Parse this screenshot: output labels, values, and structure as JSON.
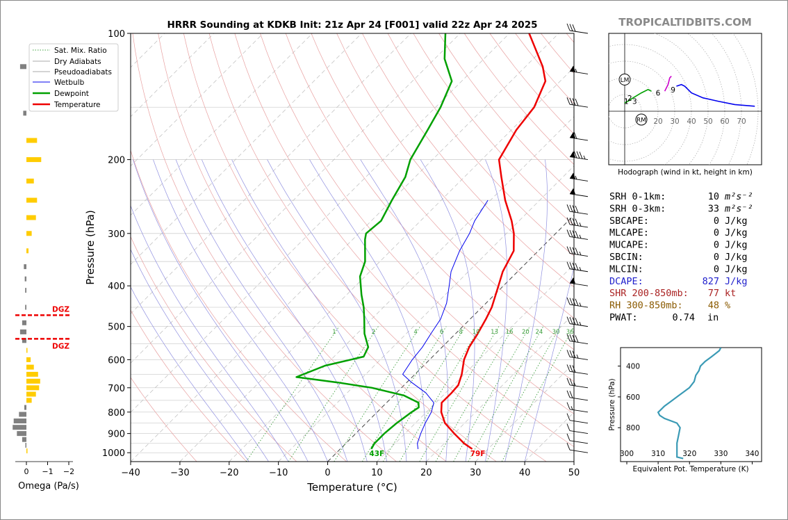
{
  "site": "TROPICALTIDBITS.COM",
  "colors": {
    "temperature": "#ee0000",
    "dewpoint": "#00a000",
    "wetbulb": "#0000ee",
    "dry_adiabat": "#e8a0a0",
    "pseudo_adiabat": "#9090e0",
    "mixing_ratio": "#40a040",
    "dgz": "#ee0000",
    "omega_up": "#ffcc00",
    "omega_down": "#808080",
    "hodo_low": "#00a000",
    "hodo_mid": "#cc00cc",
    "hodo_high": "#0000ee",
    "theta_e": "#3a9ab5",
    "dcape": "#2020cc",
    "shr": "#aa2222",
    "rh": "#8a5a00"
  },
  "chart_data": [
    {
      "type": "skew-t",
      "title": "HRRR Sounding at KDKB Init: 21z Apr 24 [F001] valid 22z Apr 24 2025",
      "xlabel": "Temperature (°C)",
      "ylabel": "Pressure (hPa)",
      "xlim": [
        -40,
        50
      ],
      "x_ticks": [
        "−40",
        "−30",
        "−20",
        "−10",
        "0",
        "10",
        "20",
        "30",
        "40",
        "50"
      ],
      "ylim": [
        1050,
        100
      ],
      "y_ticks": [
        "100",
        "200",
        "300",
        "400",
        "500",
        "600",
        "700",
        "800",
        "900",
        "1000"
      ],
      "legend": [
        "Sat. Mix. Ratio",
        "Dry Adiabats",
        "Pseudoadiabats",
        "Wetbulb",
        "Dewpoint",
        "Temperature"
      ],
      "legend_placement": "top-left",
      "mixing_ratio_labels": [
        "1",
        "2",
        "4",
        "6",
        "8",
        "10",
        "13",
        "16",
        "20",
        "24",
        "30",
        "36"
      ],
      "surface_temperature_label": "79F",
      "surface_dewpoint_label": "43F",
      "series": [
        {
          "name": "Temperature",
          "points": [
            [
              980,
              26.8
            ],
            [
              950,
              24.0
            ],
            [
              900,
              20.0
            ],
            [
              850,
              16.0
            ],
            [
              800,
              13.0
            ],
            [
              760,
              11.2
            ],
            [
              720,
              11.2
            ],
            [
              690,
              11.0
            ],
            [
              650,
              9.5
            ],
            [
              600,
              7.0
            ],
            [
              560,
              5.5
            ],
            [
              520,
              4.5
            ],
            [
              480,
              3.2
            ],
            [
              450,
              2.0
            ],
            [
              400,
              -1.0
            ],
            [
              370,
              -3.0
            ],
            [
              330,
              -5.0
            ],
            [
              300,
              -8.5
            ],
            [
              280,
              -11.5
            ],
            [
              250,
              -17.0
            ],
            [
              220,
              -22.5
            ],
            [
              200,
              -26.5
            ],
            [
              170,
              -29.0
            ],
            [
              150,
              -30.0
            ],
            [
              130,
              -33.0
            ],
            [
              120,
              -36.5
            ],
            [
              100,
              -46.0
            ]
          ]
        },
        {
          "name": "Dewpoint",
          "points": [
            [
              980,
              6.3
            ],
            [
              950,
              5.8
            ],
            [
              900,
              5.8
            ],
            [
              850,
              6.2
            ],
            [
              800,
              7.0
            ],
            [
              780,
              7.5
            ],
            [
              760,
              6.5
            ],
            [
              730,
              2.0
            ],
            [
              700,
              -6.0
            ],
            [
              680,
              -14.0
            ],
            [
              660,
              -23.5
            ],
            [
              620,
              -20.0
            ],
            [
              590,
              -14.0
            ],
            [
              560,
              -15.0
            ],
            [
              520,
              -18.5
            ],
            [
              480,
              -21.5
            ],
            [
              450,
              -24.0
            ],
            [
              420,
              -27.0
            ],
            [
              380,
              -31.0
            ],
            [
              350,
              -33.0
            ],
            [
              310,
              -37.5
            ],
            [
              300,
              -38.5
            ],
            [
              280,
              -38.0
            ],
            [
              250,
              -40.0
            ],
            [
              220,
              -42.0
            ],
            [
              200,
              -44.5
            ],
            [
              170,
              -47.0
            ],
            [
              150,
              -49.0
            ],
            [
              130,
              -52.0
            ],
            [
              115,
              -58.0
            ],
            [
              100,
              -63.0
            ]
          ]
        },
        {
          "name": "Wetbulb",
          "points": [
            [
              980,
              15.8
            ],
            [
              950,
              14.5
            ],
            [
              900,
              13.2
            ],
            [
              850,
              12.0
            ],
            [
              800,
              11.0
            ],
            [
              760,
              9.6
            ],
            [
              720,
              6.0
            ],
            [
              680,
              1.0
            ],
            [
              650,
              -2.5
            ],
            [
              600,
              -3.5
            ],
            [
              560,
              -4.0
            ],
            [
              520,
              -5.0
            ],
            [
              480,
              -6.0
            ],
            [
              440,
              -8.0
            ],
            [
              400,
              -11.0
            ],
            [
              370,
              -13.5
            ],
            [
              330,
              -16.0
            ],
            [
              300,
              -17.5
            ],
            [
              280,
              -19.0
            ],
            [
              250,
              -20.5
            ]
          ]
        }
      ],
      "wind_barbs_kt": [
        {
          "p": 1000,
          "speed": 10
        },
        {
          "p": 950,
          "speed": 10
        },
        {
          "p": 900,
          "speed": 10
        },
        {
          "p": 850,
          "speed": 10
        },
        {
          "p": 800,
          "speed": 15
        },
        {
          "p": 750,
          "speed": 20
        },
        {
          "p": 700,
          "speed": 25
        },
        {
          "p": 650,
          "speed": 30
        },
        {
          "p": 600,
          "speed": 35
        },
        {
          "p": 550,
          "speed": 40
        },
        {
          "p": 500,
          "speed": 45
        },
        {
          "p": 450,
          "speed": 45
        },
        {
          "p": 400,
          "speed": 50
        },
        {
          "p": 370,
          "speed": 45
        },
        {
          "p": 340,
          "speed": 45
        },
        {
          "p": 310,
          "speed": 45
        },
        {
          "p": 290,
          "speed": 45
        },
        {
          "p": 270,
          "speed": 40
        },
        {
          "p": 245,
          "speed": 50
        },
        {
          "p": 225,
          "speed": 55
        },
        {
          "p": 200,
          "speed": 85
        },
        {
          "p": 180,
          "speed": 60
        },
        {
          "p": 150,
          "speed": 40
        },
        {
          "p": 125,
          "speed": 55
        },
        {
          "p": 100,
          "speed": 30
        }
      ]
    },
    {
      "type": "bar",
      "title": "",
      "xlabel": "Omega (Pa/s)",
      "x_ticks": [
        "0",
        "−1",
        "−2"
      ],
      "xlim": [
        0.5,
        -2.0
      ],
      "dgz_label": "DGZ",
      "dgz_levels": [
        470,
        535
      ],
      "values": [
        {
          "p": 120,
          "w": 0.3
        },
        {
          "p": 155,
          "w": 0.15
        },
        {
          "p": 180,
          "w": -0.5
        },
        {
          "p": 200,
          "w": -0.7
        },
        {
          "p": 225,
          "w": -0.35
        },
        {
          "p": 250,
          "w": -0.5
        },
        {
          "p": 275,
          "w": -0.45
        },
        {
          "p": 300,
          "w": -0.25
        },
        {
          "p": 330,
          "w": -0.1
        },
        {
          "p": 360,
          "w": 0.12
        },
        {
          "p": 385,
          "w": 0.08
        },
        {
          "p": 410,
          "w": 0.06
        },
        {
          "p": 450,
          "w": 0.06
        },
        {
          "p": 490,
          "w": 0.2
        },
        {
          "p": 515,
          "w": 0.3
        },
        {
          "p": 540,
          "w": 0.2
        },
        {
          "p": 570,
          "w": -0.05
        },
        {
          "p": 600,
          "w": -0.2
        },
        {
          "p": 625,
          "w": -0.35
        },
        {
          "p": 650,
          "w": -0.55
        },
        {
          "p": 675,
          "w": -0.65
        },
        {
          "p": 700,
          "w": -0.6
        },
        {
          "p": 725,
          "w": -0.45
        },
        {
          "p": 750,
          "w": -0.25
        },
        {
          "p": 780,
          "w": 0.1
        },
        {
          "p": 810,
          "w": 0.35
        },
        {
          "p": 840,
          "w": 0.6
        },
        {
          "p": 870,
          "w": 0.65
        },
        {
          "p": 900,
          "w": 0.45
        },
        {
          "p": 930,
          "w": 0.2
        },
        {
          "p": 960,
          "w": 0.05
        },
        {
          "p": 990,
          "w": -0.05
        }
      ]
    },
    {
      "type": "line",
      "title": "",
      "caption": "Hodograph (wind in kt, height in km)",
      "ring_labels": [
        "10",
        "20",
        "30",
        "40",
        "50",
        "60",
        "70"
      ],
      "markers": {
        "LM": "LM",
        "RM": "RM"
      },
      "height_labels": [
        "1",
        "2",
        "3",
        "6",
        "9"
      ],
      "series": [
        {
          "name": "0-3 km",
          "points": [
            [
              0,
              5
            ],
            [
              2,
              6
            ],
            [
              5,
              8
            ],
            [
              10,
              11
            ],
            [
              14,
              13
            ],
            [
              16,
              12
            ]
          ]
        },
        {
          "name": "3-9 km",
          "points": [
            [
              24,
              12
            ],
            [
              26,
              16
            ],
            [
              27,
              20
            ],
            [
              28,
              21
            ]
          ]
        },
        {
          "name": "9+ km",
          "points": [
            [
              31,
              15
            ],
            [
              34,
              16
            ],
            [
              36,
              15
            ],
            [
              40,
              11
            ],
            [
              47,
              8
            ],
            [
              56,
              6
            ],
            [
              66,
              4
            ],
            [
              78,
              3
            ]
          ]
        }
      ]
    },
    {
      "type": "line",
      "title": "",
      "xlabel": "Equivalent Pot. Temperature (K)",
      "ylabel": "Pressure (hPa)",
      "xlim": [
        300,
        342
      ],
      "ylim": [
        1020,
        280
      ],
      "x_ticks": [
        "300",
        "310",
        "320",
        "330",
        "340"
      ],
      "y_ticks": [
        "400",
        "600",
        "800"
      ],
      "series": [
        {
          "name": "Theta-e",
          "points": [
            [
              1000,
              318
            ],
            [
              990,
              316
            ],
            [
              950,
              316
            ],
            [
              900,
              316
            ],
            [
              850,
              316.5
            ],
            [
              800,
              317
            ],
            [
              770,
              316
            ],
            [
              740,
              312
            ],
            [
              720,
              310.5
            ],
            [
              700,
              310
            ],
            [
              690,
              310.5
            ],
            [
              660,
              312
            ],
            [
              630,
              314
            ],
            [
              600,
              316
            ],
            [
              570,
              318
            ],
            [
              540,
              320
            ],
            [
              500,
              321.5
            ],
            [
              460,
              322
            ],
            [
              430,
              323
            ],
            [
              400,
              323.5
            ],
            [
              370,
              325
            ],
            [
              340,
              327
            ],
            [
              300,
              329.5
            ],
            [
              280,
              330
            ]
          ]
        }
      ]
    }
  ],
  "indices": [
    {
      "key": "SRH 0-1km:",
      "value": "10",
      "unit": "m2s-2",
      "color": "#000000"
    },
    {
      "key": "SRH 0-3km:",
      "value": "33",
      "unit": "m2s-2",
      "color": "#000000"
    },
    {
      "key": "SBCAPE:",
      "value": "0",
      "unit": "J/kg",
      "color": "#000000"
    },
    {
      "key": "MLCAPE:",
      "value": "0",
      "unit": "J/kg",
      "color": "#000000"
    },
    {
      "key": "MUCAPE:",
      "value": "0",
      "unit": "J/kg",
      "color": "#000000"
    },
    {
      "key": "SBCIN:",
      "value": "0",
      "unit": "J/kg",
      "color": "#000000"
    },
    {
      "key": "MLCIN:",
      "value": "0",
      "unit": "J/kg",
      "color": "#000000"
    },
    {
      "key": "DCAPE:",
      "value": "827",
      "unit": "J/kg",
      "color": "#2020cc"
    },
    {
      "key": "SHR 200-850mb:",
      "value": "77",
      "unit": "kt",
      "color": "#aa2222"
    },
    {
      "key": "RH 300-850mb:",
      "value": "48",
      "unit": "%",
      "color": "#8a5a00"
    },
    {
      "key": "PWAT:",
      "value": "0.74",
      "unit": "in",
      "color": "#000000"
    }
  ]
}
